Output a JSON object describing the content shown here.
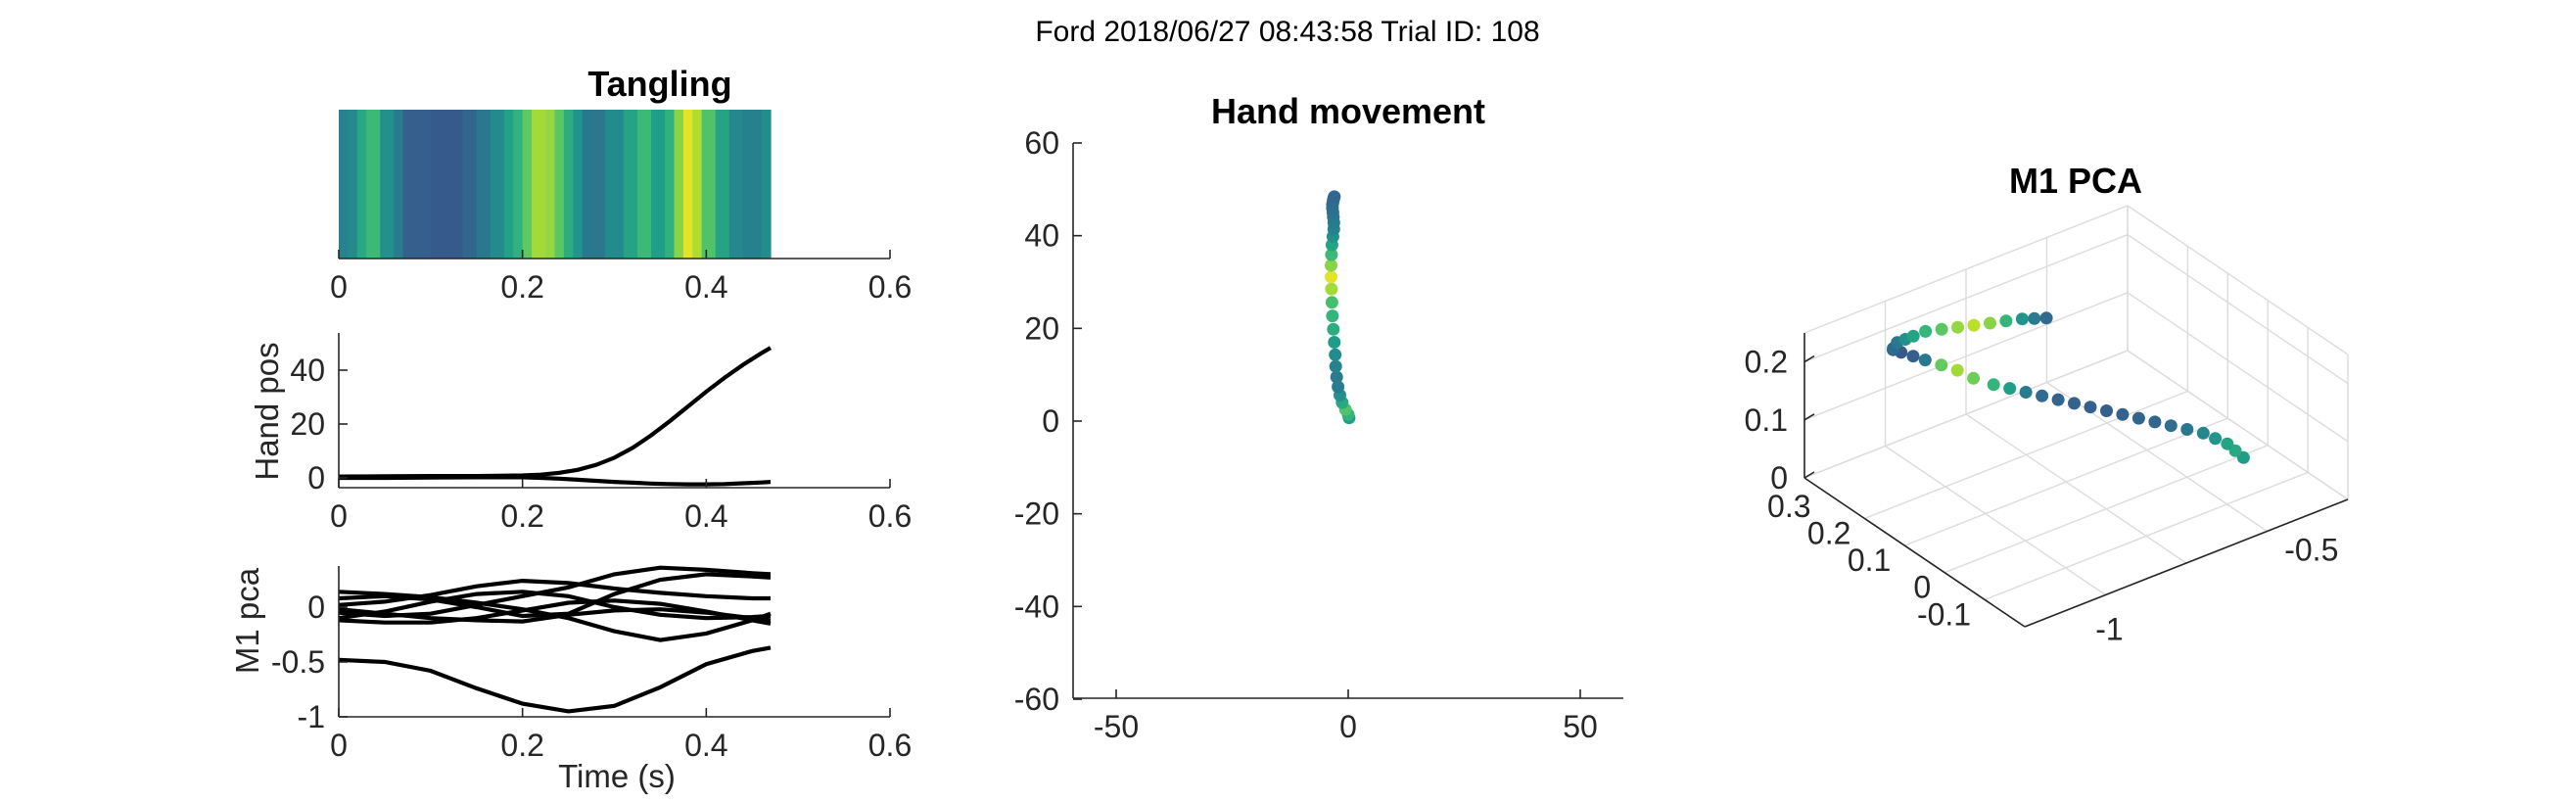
{
  "figure_title": "Ford 2018/06/27 08:43:58 Trial ID: 108",
  "colors": {
    "axis": "#262626",
    "trace": "#000000",
    "viridis_dark": "#2f6a8d",
    "viridis_teal": "#24868e",
    "viridis_green": "#3cbc74",
    "viridis_yellow": "#ecdf1c"
  },
  "chart_data": [
    {
      "type": "heatmap",
      "title": "Tangling",
      "xlabel": "",
      "ylabel": "",
      "xlim": [
        0,
        0.6
      ],
      "xticks": [
        0,
        0.2,
        0.4,
        0.6
      ],
      "xtick_labels": [
        "0",
        "0.2",
        "0.4",
        "0.6"
      ],
      "colormap": "viridis",
      "segments": [
        {
          "x0": 0.0,
          "x1": 0.01,
          "value": 0.45
        },
        {
          "x0": 0.01,
          "x1": 0.02,
          "value": 0.48
        },
        {
          "x0": 0.02,
          "x1": 0.03,
          "value": 0.6
        },
        {
          "x0": 0.03,
          "x1": 0.045,
          "value": 0.68
        },
        {
          "x0": 0.045,
          "x1": 0.06,
          "value": 0.5
        },
        {
          "x0": 0.06,
          "x1": 0.07,
          "value": 0.42
        },
        {
          "x0": 0.07,
          "x1": 0.1,
          "value": 0.3
        },
        {
          "x0": 0.1,
          "x1": 0.135,
          "value": 0.28
        },
        {
          "x0": 0.135,
          "x1": 0.15,
          "value": 0.33
        },
        {
          "x0": 0.15,
          "x1": 0.165,
          "value": 0.4
        },
        {
          "x0": 0.165,
          "x1": 0.18,
          "value": 0.48
        },
        {
          "x0": 0.18,
          "x1": 0.19,
          "value": 0.57
        },
        {
          "x0": 0.19,
          "x1": 0.2,
          "value": 0.64
        },
        {
          "x0": 0.2,
          "x1": 0.21,
          "value": 0.75
        },
        {
          "x0": 0.21,
          "x1": 0.225,
          "value": 0.86
        },
        {
          "x0": 0.225,
          "x1": 0.235,
          "value": 0.84
        },
        {
          "x0": 0.235,
          "x1": 0.245,
          "value": 0.74
        },
        {
          "x0": 0.245,
          "x1": 0.255,
          "value": 0.62
        },
        {
          "x0": 0.255,
          "x1": 0.265,
          "value": 0.52
        },
        {
          "x0": 0.265,
          "x1": 0.29,
          "value": 0.4
        },
        {
          "x0": 0.29,
          "x1": 0.31,
          "value": 0.48
        },
        {
          "x0": 0.31,
          "x1": 0.325,
          "value": 0.58
        },
        {
          "x0": 0.325,
          "x1": 0.34,
          "value": 0.68
        },
        {
          "x0": 0.34,
          "x1": 0.355,
          "value": 0.56
        },
        {
          "x0": 0.355,
          "x1": 0.365,
          "value": 0.64
        },
        {
          "x0": 0.365,
          "x1": 0.375,
          "value": 0.82
        },
        {
          "x0": 0.375,
          "x1": 0.385,
          "value": 0.96
        },
        {
          "x0": 0.385,
          "x1": 0.395,
          "value": 0.88
        },
        {
          "x0": 0.395,
          "x1": 0.41,
          "value": 0.72
        },
        {
          "x0": 0.41,
          "x1": 0.425,
          "value": 0.58
        },
        {
          "x0": 0.425,
          "x1": 0.44,
          "value": 0.47
        },
        {
          "x0": 0.44,
          "x1": 0.46,
          "value": 0.44
        },
        {
          "x0": 0.46,
          "x1": 0.47,
          "value": 0.49
        }
      ]
    },
    {
      "type": "line",
      "title": "",
      "xlabel": "",
      "ylabel": "Hand pos",
      "xlim": [
        0,
        0.6
      ],
      "ylim": [
        -3,
        52
      ],
      "xticks": [
        0,
        0.2,
        0.4,
        0.6
      ],
      "xtick_labels": [
        "0",
        "0.2",
        "0.4",
        "0.6"
      ],
      "yticks": [
        0,
        20,
        40
      ],
      "ytick_labels": [
        "0",
        "20",
        "40"
      ],
      "x": [
        0,
        0.05,
        0.1,
        0.15,
        0.2,
        0.22,
        0.24,
        0.26,
        0.28,
        0.3,
        0.32,
        0.34,
        0.36,
        0.38,
        0.4,
        0.42,
        0.44,
        0.46,
        0.47
      ],
      "series": [
        {
          "values": [
            0.5,
            0.6,
            0.7,
            0.7,
            0.9,
            1.2,
            1.9,
            3.0,
            4.8,
            7.5,
            11.2,
            15.8,
            21.0,
            26.5,
            32.0,
            37.2,
            42.0,
            46.3,
            48.3
          ]
        },
        {
          "values": [
            0.0,
            0.0,
            0.1,
            0.2,
            0.2,
            0.0,
            -0.3,
            -0.7,
            -1.1,
            -1.5,
            -1.8,
            -2.1,
            -2.3,
            -2.4,
            -2.4,
            -2.3,
            -2.0,
            -1.7,
            -1.5
          ]
        }
      ]
    },
    {
      "type": "line",
      "title": "",
      "xlabel": "Time (s)",
      "ylabel": "M1 pca",
      "xlim": [
        0,
        0.6
      ],
      "ylim": [
        -1,
        0.38
      ],
      "xticks": [
        0,
        0.2,
        0.4,
        0.6
      ],
      "xtick_labels": [
        "0",
        "0.2",
        "0.4",
        "0.6"
      ],
      "yticks": [
        -1,
        -0.5,
        0
      ],
      "ytick_labels": [
        "-1",
        "-0.5",
        "0"
      ],
      "x": [
        0,
        0.05,
        0.1,
        0.15,
        0.2,
        0.25,
        0.3,
        0.35,
        0.4,
        0.45,
        0.47
      ],
      "series": [
        {
          "values": [
            -0.48,
            -0.5,
            -0.58,
            -0.74,
            -0.88,
            -0.95,
            -0.9,
            -0.73,
            -0.52,
            -0.4,
            -0.37
          ]
        },
        {
          "values": [
            0.14,
            0.12,
            0.09,
            0.04,
            -0.02,
            -0.1,
            -0.22,
            -0.3,
            -0.24,
            -0.12,
            -0.06
          ]
        },
        {
          "values": [
            0.02,
            0.05,
            0.11,
            0.19,
            0.24,
            0.22,
            0.17,
            0.13,
            0.1,
            0.08,
            0.08
          ]
        },
        {
          "values": [
            -0.1,
            -0.04,
            0.05,
            0.12,
            0.14,
            0.1,
            0.0,
            -0.07,
            -0.1,
            -0.09,
            -0.08
          ]
        },
        {
          "values": [
            0.08,
            0.1,
            0.07,
            0.0,
            -0.08,
            -0.06,
            0.12,
            0.25,
            0.3,
            0.28,
            0.27
          ]
        },
        {
          "values": [
            -0.05,
            -0.08,
            -0.06,
            0.02,
            0.1,
            0.18,
            0.3,
            0.36,
            0.34,
            0.31,
            0.3
          ]
        },
        {
          "values": [
            -0.02,
            -0.06,
            -0.1,
            -0.12,
            -0.13,
            -0.07,
            -0.03,
            -0.02,
            -0.05,
            -0.1,
            -0.12
          ]
        },
        {
          "values": [
            -0.12,
            -0.14,
            -0.14,
            -0.1,
            -0.03,
            0.04,
            0.06,
            0.03,
            -0.04,
            -0.12,
            -0.15
          ]
        }
      ]
    },
    {
      "type": "scatter",
      "title": "Hand movement",
      "xlabel": "",
      "ylabel": "",
      "xlim": [
        -58,
        58
      ],
      "ylim": [
        -60,
        60
      ],
      "xticks": [
        -50,
        0,
        50
      ],
      "xtick_labels": [
        "-50",
        "0",
        "50"
      ],
      "yticks": [
        -60,
        -40,
        -20,
        0,
        20,
        40,
        60
      ],
      "ytick_labels": [
        "-60",
        "-40",
        "-20",
        "0",
        "20",
        "40",
        "60"
      ],
      "colormap": "viridis",
      "x": [
        0.2,
        0,
        -0.6,
        -1.3,
        -1.8,
        -2.2,
        -2.5,
        -2.7,
        -2.8,
        -3.0,
        -3.2,
        -3.4,
        -3.5,
        -3.6,
        -3.7,
        -3.7,
        -3.6,
        -3.5,
        -3.3,
        -3.1,
        -3.1,
        -3.2,
        -3.3,
        -3.4,
        -3.4,
        -3.3,
        -3.2,
        -3.1,
        -3.0
      ],
      "y": [
        0.7,
        1.4,
        2.5,
        4.0,
        5.6,
        7.4,
        9.5,
        11.8,
        14.3,
        17.0,
        19.8,
        22.7,
        25.6,
        28.5,
        31.1,
        33.6,
        35.9,
        38.0,
        39.8,
        41.4,
        42.8,
        44.0,
        45.0,
        45.9,
        46.6,
        47.2,
        47.7,
        48.1,
        48.4
      ],
      "colors": [
        0.55,
        0.65,
        0.72,
        0.6,
        0.5,
        0.42,
        0.42,
        0.45,
        0.48,
        0.55,
        0.62,
        0.66,
        0.7,
        0.86,
        0.96,
        0.82,
        0.68,
        0.58,
        0.5,
        0.45,
        0.42,
        0.4,
        0.38,
        0.36,
        0.36,
        0.35,
        0.34,
        0.34,
        0.33
      ]
    },
    {
      "type": "scatter",
      "title": "M1 PCA",
      "xlabel": "",
      "ylabel": "",
      "projection": "3d",
      "grid": true,
      "xlim": [
        -1.2,
        -0.4
      ],
      "ylim": [
        -0.2,
        0.35
      ],
      "zlim": [
        0,
        0.25
      ],
      "xticks": [
        -1,
        -0.5
      ],
      "xtick_labels": [
        "-1",
        "-0.5"
      ],
      "yticks": [
        -0.1,
        0,
        0.1,
        0.2,
        0.3
      ],
      "ytick_labels": [
        "-0.1",
        "0",
        "0.1",
        "0.2",
        "0.3"
      ],
      "zticks": [
        0,
        0.1,
        0.2
      ],
      "ztick_labels": [
        "0",
        "0.1",
        "0.2"
      ],
      "colormap": "viridis",
      "x": [
        -0.48,
        -0.49,
        -0.5,
        -0.52,
        -0.54,
        -0.57,
        -0.6,
        -0.63,
        -0.66,
        -0.69,
        -0.72,
        -0.75,
        -0.78,
        -0.81,
        -0.84,
        -0.87,
        -0.9,
        -0.93,
        -0.96,
        -0.98,
        -1.0,
        -1.02,
        -1.03,
        -1.04,
        -1.04,
        -1.03,
        -1.01,
        -0.99,
        -0.97,
        -0.94,
        -0.91,
        -0.88,
        -0.85,
        -0.82,
        -0.79,
        -0.76,
        -0.74,
        -0.72
      ],
      "y": [
        -0.02,
        -0.01,
        0.0,
        0.01,
        0.02,
        0.03,
        0.04,
        0.05,
        0.06,
        0.07,
        0.08,
        0.09,
        0.1,
        0.11,
        0.12,
        0.13,
        0.14,
        0.15,
        0.17,
        0.19,
        0.21,
        0.23,
        0.25,
        0.27,
        0.29,
        0.3,
        0.31,
        0.31,
        0.31,
        0.31,
        0.3,
        0.29,
        0.28,
        0.27,
        0.26,
        0.25,
        0.24,
        0.23
      ],
      "z": [
        0.01,
        0.02,
        0.03,
        0.04,
        0.05,
        0.06,
        0.07,
        0.08,
        0.09,
        0.1,
        0.11,
        0.12,
        0.13,
        0.14,
        0.15,
        0.16,
        0.17,
        0.18,
        0.19,
        0.2,
        0.205,
        0.21,
        0.21,
        0.21,
        0.205,
        0.2,
        0.2,
        0.2,
        0.2,
        0.2,
        0.2,
        0.2,
        0.2,
        0.2,
        0.2,
        0.2,
        0.2,
        0.2
      ],
      "colors": [
        0.55,
        0.6,
        0.58,
        0.52,
        0.46,
        0.4,
        0.36,
        0.33,
        0.32,
        0.31,
        0.3,
        0.3,
        0.31,
        0.32,
        0.35,
        0.42,
        0.56,
        0.66,
        0.78,
        0.86,
        0.76,
        0.4,
        0.3,
        0.28,
        0.3,
        0.34,
        0.4,
        0.5,
        0.58,
        0.66,
        0.74,
        0.84,
        0.9,
        0.82,
        0.66,
        0.52,
        0.42,
        0.34
      ]
    }
  ]
}
